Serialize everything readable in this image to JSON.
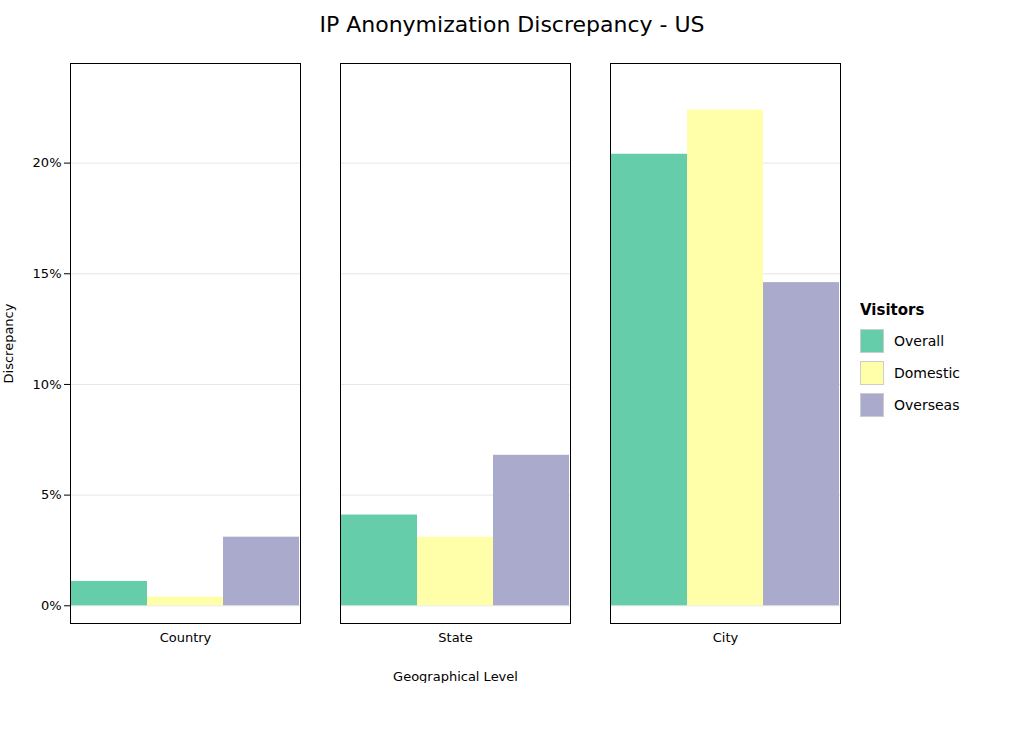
{
  "chart_data": {
    "type": "bar",
    "title": "IP Anonymization Discrepancy - US",
    "xlabel": "Geographical Level",
    "ylabel": "Discrepancy",
    "legend_title": "Visitors",
    "categories": [
      "Country",
      "State",
      "City"
    ],
    "series": [
      {
        "name": "Overall",
        "color": "#66CDAA",
        "values": [
          1.1,
          4.1,
          20.4
        ]
      },
      {
        "name": "Domestic",
        "color": "#FFFFAA",
        "values": [
          0.4,
          3.1,
          22.4
        ]
      },
      {
        "name": "Overseas",
        "color": "#AAAACC",
        "values": [
          3.1,
          6.8,
          14.6
        ]
      }
    ],
    "ylim": [
      -0.8,
      24.5
    ],
    "yticks": [
      {
        "value": 0,
        "label": "0%"
      },
      {
        "value": 5,
        "label": "5%"
      },
      {
        "value": 10,
        "label": "10%"
      },
      {
        "value": 15,
        "label": "15%"
      },
      {
        "value": 20,
        "label": "20%"
      }
    ],
    "grid": true,
    "legend": "right"
  }
}
